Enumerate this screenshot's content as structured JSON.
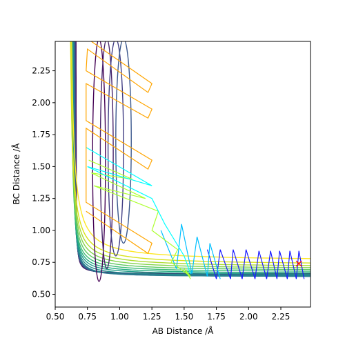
{
  "chart_data": {
    "type": "line",
    "xlabel": "AB Distance /Å",
    "ylabel": "BC Distance /Å",
    "xlim": [
      0.5,
      2.48
    ],
    "ylim": [
      0.4,
      2.48
    ],
    "xticks": [
      "0.50",
      "0.75",
      "1.00",
      "1.25",
      "1.50",
      "1.75",
      "2.00",
      "2.25"
    ],
    "yticks": [
      "0.50",
      "0.75",
      "1.00",
      "1.25",
      "1.50",
      "1.75",
      "2.00",
      "2.25"
    ],
    "grid": false,
    "contour_levels": [
      {
        "a": 0.0,
        "color": "#440154"
      },
      {
        "a": 0.05,
        "color": "#46226a"
      },
      {
        "a": 0.1,
        "color": "#3f3c83"
      },
      {
        "a": 0.15,
        "color": "#39568c"
      },
      {
        "a": 0.2,
        "color": "#33638d"
      },
      {
        "a": 0.26,
        "color": "#2d708e"
      },
      {
        "a": 0.32,
        "color": "#277f8e"
      },
      {
        "a": 0.38,
        "color": "#218e8c"
      },
      {
        "a": 0.45,
        "color": "#1f9e89"
      },
      {
        "a": 0.52,
        "color": "#25ac82"
      },
      {
        "a": 0.6,
        "color": "#3bbb75"
      },
      {
        "a": 0.69,
        "color": "#5ec962"
      },
      {
        "a": 0.79,
        "color": "#84d44b"
      },
      {
        "a": 0.9,
        "color": "#addc30"
      },
      {
        "a": 1.02,
        "color": "#d8e219"
      },
      {
        "a": 1.16,
        "color": "#fde725"
      }
    ],
    "trajectory_series": [
      {
        "color": "#1a1aff",
        "points": [
          [
            1.68,
            0.85
          ],
          [
            1.75,
            0.62
          ],
          [
            1.78,
            0.85
          ],
          [
            1.86,
            0.62
          ],
          [
            1.88,
            0.85
          ],
          [
            1.95,
            0.62
          ],
          [
            1.98,
            0.85
          ],
          [
            2.05,
            0.62
          ],
          [
            2.08,
            0.84
          ],
          [
            2.14,
            0.62
          ],
          [
            2.17,
            0.84
          ],
          [
            2.22,
            0.62
          ],
          [
            2.24,
            0.84
          ],
          [
            2.3,
            0.62
          ],
          [
            2.32,
            0.84
          ],
          [
            2.37,
            0.62
          ],
          [
            2.39,
            0.84
          ],
          [
            2.43,
            0.62
          ]
        ]
      },
      {
        "color": "#00bfff",
        "points": [
          [
            1.32,
            1.0
          ],
          [
            1.44,
            0.7
          ],
          [
            1.48,
            1.05
          ],
          [
            1.56,
            0.66
          ],
          [
            1.6,
            0.95
          ],
          [
            1.68,
            0.64
          ],
          [
            1.7,
            0.9
          ],
          [
            1.78,
            0.62
          ]
        ]
      },
      {
        "color": "#adff2f",
        "points": [
          [
            0.76,
            1.55
          ],
          [
            1.1,
            1.4
          ],
          [
            0.78,
            1.45
          ],
          [
            1.2,
            1.25
          ],
          [
            0.8,
            1.35
          ],
          [
            1.3,
            1.15
          ],
          [
            1.25,
            1.0
          ],
          [
            1.45,
            0.85
          ],
          [
            1.4,
            0.75
          ],
          [
            1.55,
            0.64
          ],
          [
            1.5,
            0.7
          ],
          [
            1.55,
            0.62
          ]
        ]
      },
      {
        "color": "#00ffff",
        "points": [
          [
            0.74,
            1.65
          ],
          [
            1.25,
            1.35
          ],
          [
            0.75,
            1.5
          ],
          [
            1.25,
            1.25
          ],
          [
            1.35,
            1.05
          ],
          [
            1.5,
            0.8
          ],
          [
            1.55,
            0.66
          ]
        ]
      },
      {
        "color": "#ffa500",
        "points": [
          [
            0.78,
            2.48
          ],
          [
            1.25,
            2.15
          ],
          [
            1.22,
            2.08
          ],
          [
            0.75,
            2.42
          ],
          [
            0.74,
            2.25
          ],
          [
            1.25,
            1.95
          ],
          [
            1.22,
            1.88
          ],
          [
            0.74,
            2.15
          ],
          [
            0.74,
            1.86
          ],
          [
            1.25,
            1.55
          ],
          [
            1.22,
            1.48
          ],
          [
            0.74,
            1.8
          ],
          [
            0.74,
            1.22
          ],
          [
            1.25,
            0.9
          ],
          [
            1.22,
            0.82
          ],
          [
            0.74,
            1.15
          ]
        ]
      }
    ],
    "marker": {
      "x": 2.39,
      "y": 0.74,
      "symbol": "x",
      "color": "#ff0000"
    }
  }
}
